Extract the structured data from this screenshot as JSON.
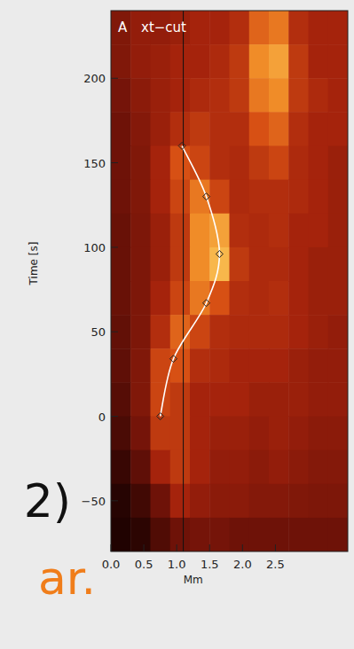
{
  "chart_data": {
    "type": "heatmap",
    "title": "xt−cut",
    "panel_label": "A",
    "x_label": "Mm",
    "y_label": "Time [s]",
    "xlim": [
      0,
      3.6
    ],
    "ylim": [
      -80,
      240
    ],
    "xticks": [
      {
        "value": 0,
        "label": "0.0"
      },
      {
        "value": 0.5,
        "label": "0.5"
      },
      {
        "value": 1,
        "label": "1.0"
      },
      {
        "value": 1.5,
        "label": "1.5"
      },
      {
        "value": 2,
        "label": "2.0"
      },
      {
        "value": 2.5,
        "label": "2.5"
      }
    ],
    "yticks": [
      {
        "value": -50,
        "label": "−50"
      },
      0,
      50,
      100,
      150,
      200
    ],
    "cells": [
      [
        0.35,
        0.4,
        0.4,
        0.42,
        0.45,
        0.45,
        0.5,
        0.7,
        0.75,
        0.5,
        0.45,
        0.45
      ],
      [
        0.35,
        0.4,
        0.42,
        0.45,
        0.45,
        0.48,
        0.55,
        0.8,
        0.85,
        0.55,
        0.45,
        0.45
      ],
      [
        0.32,
        0.38,
        0.42,
        0.45,
        0.48,
        0.5,
        0.55,
        0.75,
        0.8,
        0.55,
        0.48,
        0.45
      ],
      [
        0.3,
        0.36,
        0.42,
        0.5,
        0.55,
        0.5,
        0.5,
        0.65,
        0.7,
        0.5,
        0.45,
        0.45
      ],
      [
        0.3,
        0.35,
        0.45,
        0.65,
        0.6,
        0.5,
        0.48,
        0.55,
        0.6,
        0.48,
        0.45,
        0.42
      ],
      [
        0.3,
        0.35,
        0.45,
        0.6,
        0.75,
        0.6,
        0.48,
        0.5,
        0.5,
        0.48,
        0.45,
        0.42
      ],
      [
        0.28,
        0.34,
        0.42,
        0.55,
        0.8,
        0.85,
        0.5,
        0.48,
        0.5,
        0.45,
        0.45,
        0.42
      ],
      [
        0.28,
        0.34,
        0.42,
        0.55,
        0.8,
        0.9,
        0.55,
        0.48,
        0.48,
        0.45,
        0.42,
        0.42
      ],
      [
        0.28,
        0.34,
        0.45,
        0.6,
        0.75,
        0.65,
        0.5,
        0.48,
        0.5,
        0.45,
        0.42,
        0.42
      ],
      [
        0.26,
        0.34,
        0.5,
        0.7,
        0.6,
        0.5,
        0.48,
        0.48,
        0.48,
        0.45,
        0.42,
        0.4
      ],
      [
        0.25,
        0.35,
        0.6,
        0.65,
        0.5,
        0.48,
        0.45,
        0.45,
        0.45,
        0.42,
        0.4,
        0.4
      ],
      [
        0.22,
        0.35,
        0.6,
        0.55,
        0.45,
        0.45,
        0.45,
        0.42,
        0.42,
        0.42,
        0.4,
        0.4
      ],
      [
        0.18,
        0.32,
        0.55,
        0.55,
        0.45,
        0.42,
        0.42,
        0.4,
        0.42,
        0.4,
        0.38,
        0.38
      ],
      [
        0.12,
        0.25,
        0.45,
        0.55,
        0.45,
        0.4,
        0.4,
        0.38,
        0.4,
        0.38,
        0.36,
        0.36
      ],
      [
        0.06,
        0.15,
        0.3,
        0.45,
        0.4,
        0.38,
        0.38,
        0.36,
        0.36,
        0.35,
        0.34,
        0.34
      ],
      [
        0.04,
        0.08,
        0.2,
        0.3,
        0.32,
        0.32,
        0.3,
        0.3,
        0.3,
        0.3,
        0.3,
        0.3
      ]
    ],
    "vline": 1.1,
    "series": [
      {
        "type": "line",
        "color": "#ffffff",
        "marker": "diamond",
        "x": [
          0.75,
          0.95,
          1.45,
          1.65,
          1.45,
          1.08
        ],
        "values": [
          0,
          34,
          67,
          96,
          130,
          160
        ]
      }
    ]
  },
  "slide_fragments": [
    "2)",
    "ar."
  ]
}
